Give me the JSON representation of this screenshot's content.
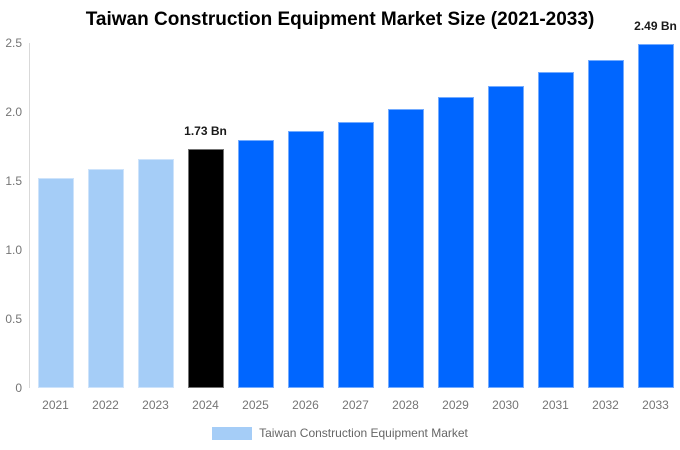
{
  "title": "Taiwan Construction Equipment Market Size (2021-2033)",
  "chart_data": {
    "type": "bar",
    "title": "Taiwan Construction Equipment Market Size (2021-2033)",
    "categories": [
      "2021",
      "2022",
      "2023",
      "2024",
      "2025",
      "2026",
      "2027",
      "2028",
      "2029",
      "2030",
      "2031",
      "2032",
      "2033"
    ],
    "values": [
      1.52,
      1.59,
      1.66,
      1.73,
      1.8,
      1.86,
      1.93,
      2.02,
      2.11,
      2.19,
      2.29,
      2.38,
      2.49
    ],
    "bar_roles": [
      "historical",
      "historical",
      "historical",
      "current",
      "forecast",
      "forecast",
      "forecast",
      "forecast",
      "forecast",
      "forecast",
      "forecast",
      "forecast",
      "forecast"
    ],
    "annotations": [
      {
        "category": "2024",
        "text": "1.73 Bn"
      },
      {
        "category": "2033",
        "text": "2.49 Bn"
      }
    ],
    "xlabel": "",
    "ylabel": "",
    "ylim": [
      0,
      2.5
    ],
    "yticks": [
      "0",
      "0.5",
      "1.0",
      "1.5",
      "2.0",
      "2.5"
    ],
    "grid": false,
    "legend": {
      "position": "bottom",
      "label": "Taiwan Construction Equipment Market",
      "swatch_color": "#a5cdf7"
    }
  },
  "colors": {
    "historical": "#a5cdf7",
    "current": "#000000",
    "forecast": "#0066ff",
    "axis_line": "#d9d9d9",
    "tick_label": "#757575",
    "legend_text": "#666666",
    "annotation": "#1a1a1a",
    "title": "#000000"
  }
}
